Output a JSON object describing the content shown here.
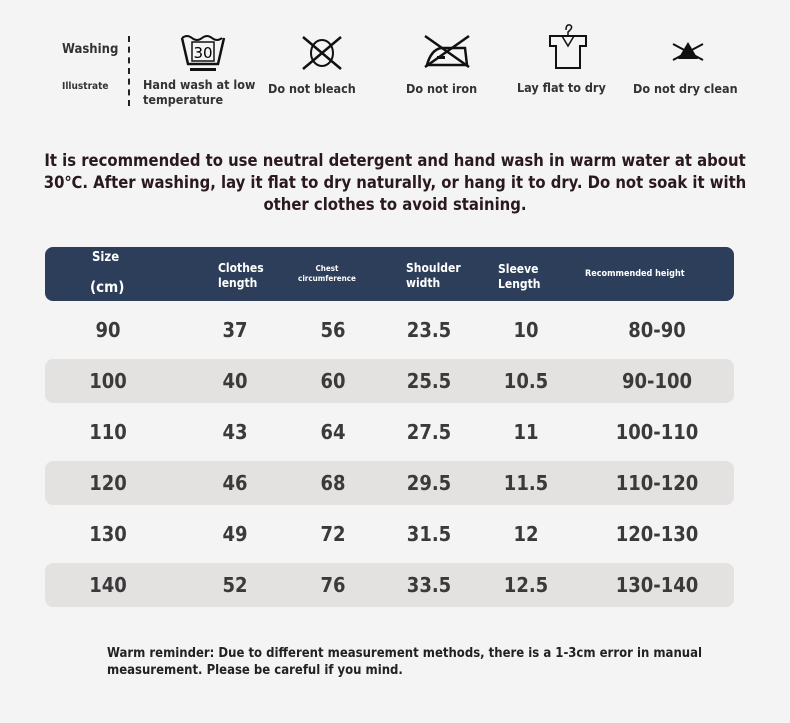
{
  "care": {
    "title": "Washing",
    "subtitle": "Illustrate",
    "items": [
      {
        "icon": "hand-wash-30-icon",
        "label": "Hand wash at low temperature",
        "num": "30"
      },
      {
        "icon": "do-not-bleach-icon",
        "label": "Do not bleach"
      },
      {
        "icon": "do-not-iron-icon",
        "label": "Do not iron"
      },
      {
        "icon": "lay-flat-dry-icon",
        "label": "Lay flat to dry"
      },
      {
        "icon": "do-not-dry-clean-icon",
        "label": "Do not dry clean"
      }
    ]
  },
  "recommendation": "It is recommended to use neutral detergent and hand wash in warm water at about 30℃. After washing, lay it flat to dry naturally, or hang it to dry. Do not soak it with other clothes to avoid staining.",
  "table": {
    "headers": {
      "size": "Size",
      "size_unit": "(cm)",
      "length": "Clothes length",
      "chest": "Chest circumference",
      "shoulder": "Shoulder width",
      "sleeve": "Sleeve Length",
      "height": "Recommended height"
    },
    "rows": [
      [
        "90",
        "37",
        "56",
        "23.5",
        "10",
        "80-90"
      ],
      [
        "100",
        "40",
        "60",
        "25.5",
        "10.5",
        "90-100"
      ],
      [
        "110",
        "43",
        "64",
        "27.5",
        "11",
        "100-110"
      ],
      [
        "120",
        "46",
        "68",
        "29.5",
        "11.5",
        "110-120"
      ],
      [
        "130",
        "49",
        "72",
        "31.5",
        "12",
        "120-130"
      ],
      [
        "140",
        "52",
        "76",
        "33.5",
        "12.5",
        "130-140"
      ]
    ]
  },
  "note": "Warm reminder: Due to different measurement methods, there is a 1-3cm error in manual measurement. Please be careful if you mind.",
  "colors": {
    "header": "#2c3e5a",
    "row_shade": "#e4e1e1",
    "background": "#f4f4f4"
  }
}
